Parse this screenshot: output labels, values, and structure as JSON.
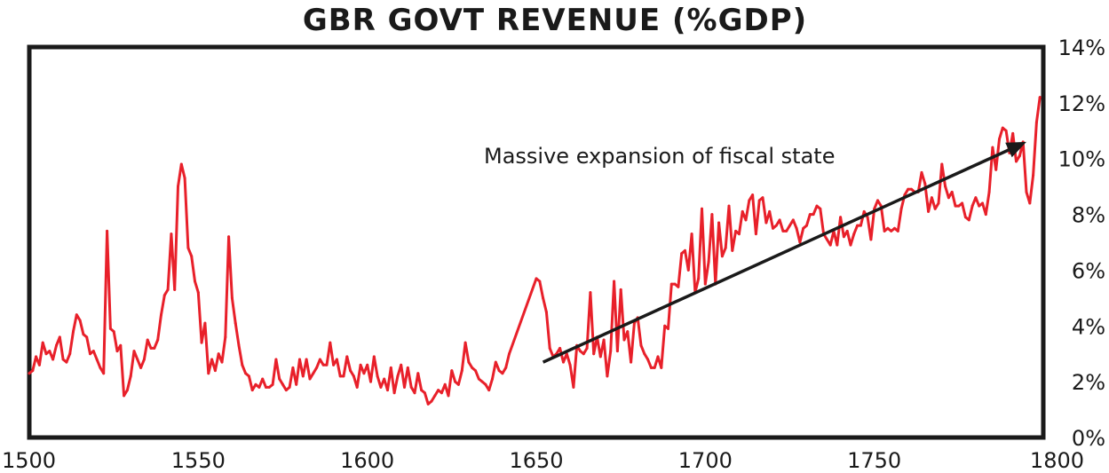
{
  "chart_data": {
    "type": "line",
    "title": "GBR GOVT REVENUE (%GDP)",
    "xlabel": "",
    "ylabel": "",
    "xlim": [
      1500,
      1800
    ],
    "ylim": [
      0,
      14
    ],
    "x_ticks": [
      "1500",
      "1550",
      "1600",
      "1650",
      "1700",
      "1750",
      "1800"
    ],
    "y_ticks": [
      "0%",
      "2%",
      "4%",
      "6%",
      "8%",
      "10%",
      "12%",
      "14%"
    ],
    "y_axis_side": "right",
    "grid": false,
    "series": [
      {
        "color": "#e8202a",
        "points": [
          [
            1500,
            2.3
          ],
          [
            1501,
            2.4
          ],
          [
            1502,
            2.9
          ],
          [
            1503,
            2.6
          ],
          [
            1504,
            3.4
          ],
          [
            1505,
            3.0
          ],
          [
            1506,
            3.1
          ],
          [
            1507,
            2.8
          ],
          [
            1508,
            3.3
          ],
          [
            1509,
            3.6
          ],
          [
            1510,
            2.8
          ],
          [
            1511,
            2.7
          ],
          [
            1512,
            3.0
          ],
          [
            1513,
            3.8
          ],
          [
            1514,
            4.4
          ],
          [
            1515,
            4.2
          ],
          [
            1516,
            3.7
          ],
          [
            1517,
            3.6
          ],
          [
            1518,
            3.0
          ],
          [
            1519,
            3.1
          ],
          [
            1520,
            2.8
          ],
          [
            1521,
            2.5
          ],
          [
            1522,
            2.3
          ],
          [
            1523,
            7.4
          ],
          [
            1524,
            3.9
          ],
          [
            1525,
            3.8
          ],
          [
            1526,
            3.1
          ],
          [
            1527,
            3.3
          ],
          [
            1528,
            1.5
          ],
          [
            1529,
            1.7
          ],
          [
            1530,
            2.2
          ],
          [
            1531,
            3.1
          ],
          [
            1532,
            2.8
          ],
          [
            1533,
            2.5
          ],
          [
            1534,
            2.8
          ],
          [
            1535,
            3.5
          ],
          [
            1536,
            3.2
          ],
          [
            1537,
            3.2
          ],
          [
            1538,
            3.5
          ],
          [
            1539,
            4.4
          ],
          [
            1540,
            5.1
          ],
          [
            1541,
            5.3
          ],
          [
            1542,
            7.3
          ],
          [
            1543,
            5.3
          ],
          [
            1544,
            9.0
          ],
          [
            1545,
            9.8
          ],
          [
            1546,
            9.3
          ],
          [
            1547,
            6.8
          ],
          [
            1548,
            6.5
          ],
          [
            1549,
            5.6
          ],
          [
            1550,
            5.2
          ],
          [
            1551,
            3.4
          ],
          [
            1552,
            4.1
          ],
          [
            1553,
            2.3
          ],
          [
            1554,
            2.8
          ],
          [
            1555,
            2.4
          ],
          [
            1556,
            3.0
          ],
          [
            1557,
            2.7
          ],
          [
            1558,
            3.6
          ],
          [
            1559,
            7.2
          ],
          [
            1560,
            5.0
          ],
          [
            1561,
            4.1
          ],
          [
            1562,
            3.3
          ],
          [
            1563,
            2.6
          ],
          [
            1564,
            2.3
          ],
          [
            1565,
            2.2
          ],
          [
            1566,
            1.7
          ],
          [
            1567,
            1.9
          ],
          [
            1568,
            1.8
          ],
          [
            1569,
            2.1
          ],
          [
            1570,
            1.8
          ],
          [
            1571,
            1.8
          ],
          [
            1572,
            1.9
          ],
          [
            1573,
            2.8
          ],
          [
            1574,
            2.1
          ],
          [
            1575,
            1.9
          ],
          [
            1576,
            1.7
          ],
          [
            1577,
            1.8
          ],
          [
            1578,
            2.5
          ],
          [
            1579,
            1.9
          ],
          [
            1580,
            2.8
          ],
          [
            1581,
            2.2
          ],
          [
            1582,
            2.8
          ],
          [
            1583,
            2.1
          ],
          [
            1584,
            2.3
          ],
          [
            1585,
            2.5
          ],
          [
            1586,
            2.8
          ],
          [
            1587,
            2.6
          ],
          [
            1588,
            2.6
          ],
          [
            1589,
            3.4
          ],
          [
            1590,
            2.6
          ],
          [
            1591,
            2.8
          ],
          [
            1592,
            2.2
          ],
          [
            1593,
            2.2
          ],
          [
            1594,
            2.9
          ],
          [
            1595,
            2.4
          ],
          [
            1596,
            2.2
          ],
          [
            1597,
            1.8
          ],
          [
            1598,
            2.6
          ],
          [
            1599,
            2.3
          ],
          [
            1600,
            2.6
          ],
          [
            1601,
            2.0
          ],
          [
            1602,
            2.9
          ],
          [
            1603,
            2.2
          ],
          [
            1604,
            1.8
          ],
          [
            1605,
            2.1
          ],
          [
            1606,
            1.7
          ],
          [
            1607,
            2.5
          ],
          [
            1608,
            1.6
          ],
          [
            1609,
            2.2
          ],
          [
            1610,
            2.6
          ],
          [
            1611,
            1.8
          ],
          [
            1612,
            2.5
          ],
          [
            1613,
            1.8
          ],
          [
            1614,
            1.6
          ],
          [
            1615,
            2.3
          ],
          [
            1616,
            1.7
          ],
          [
            1617,
            1.6
          ],
          [
            1618,
            1.2
          ],
          [
            1619,
            1.3
          ],
          [
            1620,
            1.5
          ],
          [
            1621,
            1.7
          ],
          [
            1622,
            1.6
          ],
          [
            1623,
            1.9
          ],
          [
            1624,
            1.5
          ],
          [
            1625,
            2.4
          ],
          [
            1626,
            2.0
          ],
          [
            1627,
            1.9
          ],
          [
            1628,
            2.4
          ],
          [
            1629,
            3.4
          ],
          [
            1630,
            2.7
          ],
          [
            1631,
            2.5
          ],
          [
            1632,
            2.4
          ],
          [
            1633,
            2.1
          ],
          [
            1634,
            2.0
          ],
          [
            1635,
            1.9
          ],
          [
            1636,
            1.7
          ],
          [
            1637,
            2.1
          ],
          [
            1638,
            2.7
          ],
          [
            1639,
            2.4
          ],
          [
            1640,
            2.3
          ],
          [
            1641,
            2.5
          ],
          [
            1642,
            3.0
          ],
          [
            1650,
            5.7
          ],
          [
            1651,
            5.6
          ],
          [
            1652,
            5.0
          ],
          [
            1653,
            4.5
          ],
          [
            1654,
            3.2
          ],
          [
            1655,
            2.9
          ],
          [
            1656,
            3.0
          ],
          [
            1657,
            3.2
          ],
          [
            1658,
            2.7
          ],
          [
            1659,
            3.0
          ],
          [
            1660,
            2.6
          ],
          [
            1661,
            1.8
          ],
          [
            1662,
            3.3
          ],
          [
            1663,
            3.1
          ],
          [
            1664,
            3.0
          ],
          [
            1665,
            3.2
          ],
          [
            1666,
            5.2
          ],
          [
            1667,
            3.0
          ],
          [
            1668,
            3.6
          ],
          [
            1669,
            2.9
          ],
          [
            1670,
            3.5
          ],
          [
            1671,
            2.2
          ],
          [
            1672,
            3.1
          ],
          [
            1673,
            5.6
          ],
          [
            1674,
            3.1
          ],
          [
            1675,
            5.3
          ],
          [
            1676,
            3.5
          ],
          [
            1677,
            3.8
          ],
          [
            1678,
            2.7
          ],
          [
            1679,
            4.1
          ],
          [
            1680,
            4.3
          ],
          [
            1681,
            3.3
          ],
          [
            1682,
            3.0
          ],
          [
            1683,
            2.8
          ],
          [
            1684,
            2.5
          ],
          [
            1685,
            2.5
          ],
          [
            1686,
            2.9
          ],
          [
            1687,
            2.5
          ],
          [
            1688,
            4.0
          ],
          [
            1689,
            3.9
          ],
          [
            1690,
            5.5
          ],
          [
            1691,
            5.5
          ],
          [
            1692,
            5.4
          ],
          [
            1693,
            6.6
          ],
          [
            1694,
            6.7
          ],
          [
            1695,
            6.0
          ],
          [
            1696,
            7.3
          ],
          [
            1697,
            5.2
          ],
          [
            1698,
            5.7
          ],
          [
            1699,
            8.2
          ],
          [
            1700,
            5.5
          ],
          [
            1701,
            6.3
          ],
          [
            1702,
            8.0
          ],
          [
            1703,
            5.5
          ],
          [
            1704,
            7.7
          ],
          [
            1705,
            6.5
          ],
          [
            1706,
            6.8
          ],
          [
            1707,
            8.3
          ],
          [
            1708,
            6.7
          ],
          [
            1709,
            7.4
          ],
          [
            1710,
            7.3
          ],
          [
            1711,
            8.1
          ],
          [
            1712,
            7.8
          ],
          [
            1713,
            8.5
          ],
          [
            1714,
            8.7
          ],
          [
            1715,
            7.3
          ],
          [
            1716,
            8.5
          ],
          [
            1717,
            8.6
          ],
          [
            1718,
            7.7
          ],
          [
            1719,
            8.1
          ],
          [
            1720,
            7.5
          ],
          [
            1721,
            7.6
          ],
          [
            1722,
            7.8
          ],
          [
            1723,
            7.4
          ],
          [
            1724,
            7.4
          ],
          [
            1725,
            7.6
          ],
          [
            1726,
            7.8
          ],
          [
            1727,
            7.5
          ],
          [
            1728,
            7.0
          ],
          [
            1729,
            7.5
          ],
          [
            1730,
            7.6
          ],
          [
            1731,
            8.0
          ],
          [
            1732,
            8.0
          ],
          [
            1733,
            8.3
          ],
          [
            1734,
            8.2
          ],
          [
            1735,
            7.3
          ],
          [
            1736,
            7.1
          ],
          [
            1737,
            6.9
          ],
          [
            1738,
            7.4
          ],
          [
            1739,
            6.9
          ],
          [
            1740,
            7.9
          ],
          [
            1741,
            7.2
          ],
          [
            1742,
            7.4
          ],
          [
            1743,
            6.9
          ],
          [
            1744,
            7.3
          ],
          [
            1745,
            7.6
          ],
          [
            1746,
            7.6
          ],
          [
            1747,
            8.1
          ],
          [
            1748,
            7.9
          ],
          [
            1749,
            7.1
          ],
          [
            1750,
            8.2
          ],
          [
            1751,
            8.5
          ],
          [
            1752,
            8.3
          ],
          [
            1753,
            7.4
          ],
          [
            1754,
            7.5
          ],
          [
            1755,
            7.4
          ],
          [
            1756,
            7.5
          ],
          [
            1757,
            7.4
          ],
          [
            1758,
            8.2
          ],
          [
            1759,
            8.7
          ],
          [
            1760,
            8.9
          ],
          [
            1761,
            8.9
          ],
          [
            1762,
            8.8
          ],
          [
            1763,
            8.8
          ],
          [
            1764,
            9.5
          ],
          [
            1765,
            9.1
          ],
          [
            1766,
            8.1
          ],
          [
            1767,
            8.6
          ],
          [
            1768,
            8.2
          ],
          [
            1769,
            8.4
          ],
          [
            1770,
            9.8
          ],
          [
            1771,
            9.0
          ],
          [
            1772,
            8.6
          ],
          [
            1773,
            8.8
          ],
          [
            1774,
            8.3
          ],
          [
            1775,
            8.3
          ],
          [
            1776,
            8.4
          ],
          [
            1777,
            7.9
          ],
          [
            1778,
            7.8
          ],
          [
            1779,
            8.3
          ],
          [
            1780,
            8.6
          ],
          [
            1781,
            8.3
          ],
          [
            1782,
            8.4
          ],
          [
            1783,
            8.0
          ],
          [
            1784,
            8.8
          ],
          [
            1785,
            10.4
          ],
          [
            1786,
            9.6
          ],
          [
            1787,
            10.7
          ],
          [
            1788,
            11.1
          ],
          [
            1789,
            11.0
          ],
          [
            1790,
            10.2
          ],
          [
            1791,
            10.9
          ],
          [
            1792,
            9.9
          ],
          [
            1793,
            10.1
          ],
          [
            1794,
            10.6
          ],
          [
            1795,
            8.8
          ],
          [
            1796,
            8.4
          ],
          [
            1797,
            9.4
          ],
          [
            1798,
            11.3
          ],
          [
            1799,
            12.2
          ]
        ]
      }
    ],
    "annotations": [
      {
        "text": "Massive expansion of fiscal state",
        "arrow_from": [
          1652,
          2.7
        ],
        "arrow_to": [
          1795,
          10.6
        ],
        "arrow_color": "#1a1a1a"
      }
    ]
  }
}
